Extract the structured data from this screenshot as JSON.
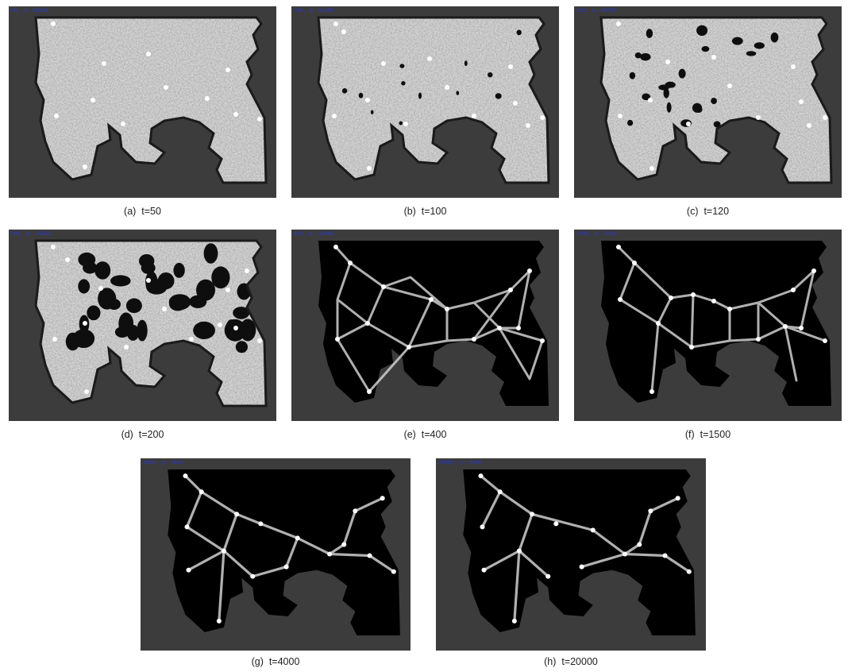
{
  "figure": {
    "panels": [
      {
        "id": "a",
        "caption": "(a)  t=50",
        "hud": "50,  p: 65518",
        "stage": "noise"
      },
      {
        "id": "b",
        "caption": "(b)  t=100",
        "hud": "100,  p: 51460",
        "stage": "noise-holes"
      },
      {
        "id": "c",
        "caption": "(c)  t=120",
        "hud": "120,  p: 48750",
        "stage": "noise-holes"
      },
      {
        "id": "d",
        "caption": "(d)  t=200",
        "hud": "200,  p: 35622",
        "stage": "holes"
      },
      {
        "id": "e",
        "caption": "(e)  t=400",
        "hud": "400,  p: 12665",
        "stage": "network"
      },
      {
        "id": "f",
        "caption": "(f)  t=1500",
        "hud": "1500,  p: 3516",
        "stage": "network"
      },
      {
        "id": "g",
        "caption": "(g)  t=4000",
        "hud": "4000,  p: 3022",
        "stage": "tree"
      },
      {
        "id": "h",
        "caption": "(h)  t=20000",
        "hud": "20000,  p: 2306",
        "stage": "tree"
      }
    ],
    "colors": {
      "background": "#3c3c3c",
      "shape_noise": "#a7a7a7",
      "shape_network": "#000000",
      "edges": "#cfcfcf",
      "nodes": "#ffffff",
      "hud_text": "#2a36d6"
    }
  }
}
